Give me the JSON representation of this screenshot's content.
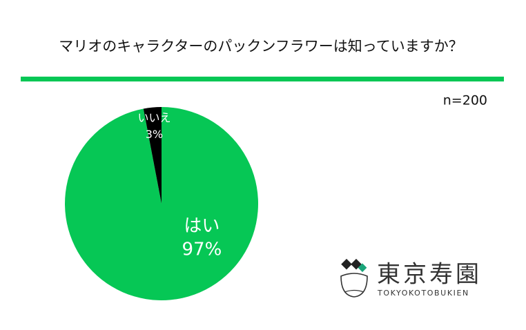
{
  "chart_data": {
    "type": "pie",
    "title": "マリオのキャラクターのパックンフラワーは知っていますか？",
    "subtitle": "n=200",
    "categories": [
      "はい",
      "いいえ"
    ],
    "values": [
      97,
      3
    ],
    "value_labels": [
      "97%",
      "3%"
    ],
    "colors": [
      "#06c755",
      "#000000"
    ]
  },
  "logo": {
    "name": "東京寿園",
    "romaji": "TOKYOKOTOBUKIEN"
  }
}
